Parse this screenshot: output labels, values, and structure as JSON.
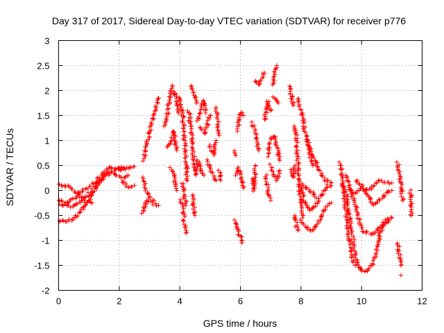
{
  "chart_data": {
    "type": "scatter",
    "title": "Day 317 of 2017, Sidereal Day-to-day VTEC variation (SDTVAR) for receiver p776",
    "xlabel": "GPS time / hours",
    "ylabel": "SDTVAR / TECUs",
    "xlim": [
      0,
      12
    ],
    "ylim": [
      -2,
      3
    ],
    "xticks": [
      0,
      2,
      4,
      6,
      8,
      10,
      12
    ],
    "yticks": [
      -2,
      -1.5,
      -1,
      -0.5,
      0,
      0.5,
      1,
      1.5,
      2,
      2.5,
      3
    ],
    "xtick_labels": [
      "0",
      "2",
      "4",
      "6",
      "8",
      "10",
      "12"
    ],
    "ytick_labels": [
      "-2",
      "-1.5",
      "-1",
      "-0.5",
      "0",
      "0.5",
      "1",
      "1.5",
      "2",
      "2.5",
      "3"
    ],
    "grid": true,
    "marker": "+",
    "marker_color": "#ff0000",
    "series": [
      {
        "name": "SDTVAR",
        "segments": [
          [
            [
              0.0,
              0.12
            ],
            [
              0.3,
              0.08
            ],
            [
              0.6,
              -0.05
            ],
            [
              0.9,
              -0.22
            ],
            [
              1.1,
              -0.25
            ]
          ],
          [
            [
              0.0,
              -0.2
            ],
            [
              0.3,
              -0.25
            ],
            [
              0.6,
              -0.1
            ],
            [
              0.8,
              0.0
            ],
            [
              1.2,
              0.15
            ],
            [
              1.5,
              0.35
            ],
            [
              1.7,
              0.45
            ],
            [
              1.9,
              0.45
            ],
            [
              2.2,
              0.45
            ],
            [
              2.5,
              0.48
            ]
          ],
          [
            [
              0.0,
              -0.6
            ],
            [
              0.4,
              -0.6
            ],
            [
              0.7,
              -0.45
            ],
            [
              1.0,
              -0.2
            ],
            [
              1.3,
              0.1
            ],
            [
              1.5,
              0.3
            ],
            [
              1.8,
              0.35
            ],
            [
              2.1,
              0.25
            ],
            [
              2.3,
              0.3
            ]
          ],
          [
            [
              0.0,
              -0.25
            ],
            [
              0.2,
              -0.3
            ],
            [
              0.5,
              -0.32
            ],
            [
              0.8,
              -0.2
            ],
            [
              1.1,
              0.0
            ],
            [
              1.4,
              0.2
            ],
            [
              1.7,
              0.38
            ],
            [
              2.0,
              0.42
            ],
            [
              2.2,
              0.42
            ]
          ],
          [
            [
              2.1,
              0.2
            ],
            [
              2.3,
              0.05
            ],
            [
              2.5,
              0.1
            ]
          ],
          [
            [
              2.75,
              -0.45
            ],
            [
              2.9,
              -0.2
            ],
            [
              3.1,
              -0.25
            ],
            [
              3.3,
              -0.3
            ]
          ],
          [
            [
              2.8,
              0.6
            ],
            [
              2.9,
              0.85
            ],
            [
              3.0,
              1.2
            ],
            [
              3.15,
              1.55
            ],
            [
              3.3,
              1.85
            ]
          ],
          [
            [
              2.8,
              0.25
            ],
            [
              2.9,
              0.0
            ],
            [
              3.0,
              -0.15
            ],
            [
              3.15,
              -0.2
            ]
          ],
          [
            [
              3.5,
              1.3
            ],
            [
              3.6,
              1.6
            ],
            [
              3.7,
              1.95
            ],
            [
              3.75,
              2.1
            ]
          ],
          [
            [
              3.6,
              0.85
            ],
            [
              3.7,
              0.95
            ],
            [
              3.8,
              1.2
            ],
            [
              3.85,
              1.0
            ],
            [
              3.9,
              0.8
            ]
          ],
          [
            [
              3.7,
              0.45
            ],
            [
              3.8,
              0.3
            ],
            [
              3.85,
              0.1
            ],
            [
              3.9,
              0.0
            ]
          ],
          [
            [
              3.8,
              2.0
            ],
            [
              3.9,
              1.8
            ],
            [
              3.95,
              1.55
            ]
          ],
          [
            [
              4.0,
              1.85
            ],
            [
              4.1,
              1.5
            ],
            [
              4.15,
              1.1
            ],
            [
              4.2,
              0.6
            ],
            [
              4.25,
              0.2
            ]
          ],
          [
            [
              4.05,
              -0.2
            ],
            [
              4.1,
              -0.4
            ],
            [
              4.15,
              -0.6
            ],
            [
              4.2,
              -0.85
            ]
          ],
          [
            [
              4.1,
              0.15
            ],
            [
              4.15,
              -0.1
            ],
            [
              4.2,
              -0.3
            ]
          ],
          [
            [
              4.3,
              1.6
            ],
            [
              4.35,
              1.3
            ],
            [
              4.4,
              1.0
            ],
            [
              4.45,
              0.7
            ],
            [
              4.5,
              0.4
            ]
          ],
          [
            [
              4.4,
              -0.1
            ],
            [
              4.45,
              -0.3
            ],
            [
              4.5,
              -0.5
            ]
          ],
          [
            [
              4.35,
              2.1
            ],
            [
              4.45,
              1.95
            ],
            [
              4.55,
              1.75
            ]
          ],
          [
            [
              4.5,
              0.3
            ],
            [
              4.55,
              0.4
            ],
            [
              4.6,
              0.6
            ],
            [
              4.7,
              0.4
            ],
            [
              4.8,
              0.3
            ]
          ],
          [
            [
              4.6,
              1.4
            ],
            [
              4.7,
              1.6
            ],
            [
              4.8,
              1.8
            ],
            [
              4.85,
              1.55
            ]
          ],
          [
            [
              4.7,
              1.25
            ],
            [
              4.8,
              1.15
            ],
            [
              4.9,
              1.3
            ],
            [
              5.0,
              1.5
            ]
          ],
          [
            [
              4.9,
              0.6
            ],
            [
              5.0,
              0.45
            ],
            [
              5.1,
              0.3
            ],
            [
              5.2,
              0.2
            ]
          ],
          [
            [
              5.0,
              0.9
            ],
            [
              5.1,
              0.7
            ],
            [
              5.2,
              1.0
            ]
          ],
          [
            [
              5.2,
              1.65
            ],
            [
              5.25,
              1.4
            ],
            [
              5.3,
              1.1
            ]
          ],
          [
            [
              5.3,
              0.4
            ],
            [
              5.35,
              0.2
            ]
          ],
          [
            [
              5.8,
              0.78
            ],
            [
              5.85,
              0.7
            ]
          ],
          [
            [
              5.8,
              -0.6
            ],
            [
              5.9,
              -0.75
            ],
            [
              6.0,
              -0.95
            ],
            [
              6.05,
              -1.05
            ]
          ],
          [
            [
              5.85,
              0.3
            ],
            [
              5.95,
              0.45
            ],
            [
              6.05,
              0.25
            ],
            [
              6.1,
              0.05
            ]
          ],
          [
            [
              5.9,
              1.2
            ],
            [
              5.95,
              1.4
            ],
            [
              6.0,
              1.55
            ],
            [
              6.1,
              1.5
            ]
          ],
          [
            [
              6.4,
              1.35
            ],
            [
              6.5,
              1.1
            ],
            [
              6.6,
              0.8
            ]
          ],
          [
            [
              6.4,
              0.25
            ],
            [
              6.45,
              0.0
            ],
            [
              6.5,
              0.5
            ]
          ],
          [
            [
              6.5,
              2.2
            ],
            [
              6.6,
              2.1
            ],
            [
              6.7,
              2.25
            ],
            [
              6.8,
              2.35
            ]
          ],
          [
            [
              6.8,
              1.4
            ],
            [
              6.85,
              1.6
            ],
            [
              6.9,
              1.8
            ],
            [
              7.0,
              1.6
            ]
          ],
          [
            [
              6.85,
              0.3
            ],
            [
              6.9,
              0.0
            ],
            [
              6.95,
              -0.1
            ],
            [
              7.0,
              -0.2
            ]
          ],
          [
            [
              6.9,
              0.7
            ],
            [
              7.0,
              1.0
            ],
            [
              7.1,
              1.1
            ],
            [
              7.2,
              0.9
            ],
            [
              7.3,
              0.6
            ]
          ],
          [
            [
              7.0,
              0.5
            ],
            [
              7.1,
              0.3
            ],
            [
              7.2,
              0.2
            ],
            [
              7.3,
              0.4
            ]
          ],
          [
            [
              7.1,
              1.85
            ],
            [
              7.2,
              1.8
            ],
            [
              7.25,
              1.75
            ]
          ],
          [
            [
              7.1,
              2.1
            ],
            [
              7.15,
              2.45
            ],
            [
              7.2,
              2.5
            ]
          ],
          [
            [
              7.6,
              2.1
            ],
            [
              7.7,
              1.9
            ],
            [
              7.75,
              1.7
            ]
          ],
          [
            [
              7.7,
              0.4
            ],
            [
              7.75,
              0.25
            ],
            [
              7.8,
              0.5
            ]
          ],
          [
            [
              7.8,
              1.3
            ],
            [
              7.85,
              1.0
            ],
            [
              7.9,
              0.5
            ],
            [
              7.95,
              0.0
            ],
            [
              8.0,
              -0.3
            ],
            [
              8.05,
              -0.55
            ]
          ],
          [
            [
              7.8,
              -0.5
            ],
            [
              7.85,
              -0.7
            ],
            [
              7.9,
              -0.8
            ]
          ],
          [
            [
              7.9,
              1.85
            ],
            [
              8.0,
              1.6
            ],
            [
              8.1,
              1.3
            ],
            [
              8.2,
              1.0
            ],
            [
              8.3,
              0.7
            ],
            [
              8.4,
              0.5
            ]
          ],
          [
            [
              8.0,
              -0.6
            ],
            [
              8.2,
              -0.75
            ],
            [
              8.4,
              -0.8
            ],
            [
              8.6,
              -0.6
            ],
            [
              8.8,
              -0.35
            ],
            [
              9.0,
              -0.25
            ]
          ],
          [
            [
              8.0,
              0.15
            ],
            [
              8.1,
              -0.2
            ],
            [
              8.3,
              -0.4
            ],
            [
              8.5,
              -0.3
            ],
            [
              8.7,
              -0.05
            ],
            [
              8.9,
              0.1
            ],
            [
              9.0,
              0.1
            ]
          ],
          [
            [
              8.2,
              1.0
            ],
            [
              8.4,
              0.7
            ],
            [
              8.6,
              0.4
            ],
            [
              8.8,
              0.2
            ],
            [
              9.0,
              0.15
            ]
          ],
          [
            [
              8.1,
              0.1
            ],
            [
              8.3,
              0.0
            ],
            [
              8.5,
              -0.15
            ]
          ],
          [
            [
              9.3,
              0.55
            ],
            [
              9.35,
              0.3
            ],
            [
              9.4,
              0.0
            ],
            [
              9.5,
              -0.5
            ],
            [
              9.6,
              -1.0
            ],
            [
              9.7,
              -1.4
            ],
            [
              9.8,
              -1.5
            ]
          ],
          [
            [
              9.4,
              0.1
            ],
            [
              9.5,
              -0.1
            ],
            [
              9.6,
              -0.5
            ],
            [
              9.7,
              -0.9
            ],
            [
              9.8,
              -1.3
            ],
            [
              9.9,
              -1.55
            ],
            [
              10.0,
              -1.6
            ],
            [
              10.2,
              -1.6
            ],
            [
              10.4,
              -1.45
            ],
            [
              10.5,
              -1.2
            ],
            [
              10.6,
              -0.9
            ],
            [
              10.7,
              -0.7
            ],
            [
              10.8,
              -0.65
            ],
            [
              10.9,
              -0.6
            ]
          ],
          [
            [
              9.5,
              0.3
            ],
            [
              9.6,
              0.1
            ],
            [
              9.8,
              -0.3
            ],
            [
              10.0,
              -0.8
            ],
            [
              10.2,
              -0.85
            ],
            [
              10.4,
              -0.85
            ],
            [
              10.6,
              -0.75
            ],
            [
              10.8,
              -0.6
            ],
            [
              11.0,
              -0.55
            ]
          ],
          [
            [
              9.6,
              0.0
            ],
            [
              9.8,
              -0.05
            ],
            [
              10.0,
              0.05
            ],
            [
              10.2,
              0.0
            ],
            [
              10.4,
              0.1
            ],
            [
              10.6,
              0.2
            ],
            [
              10.8,
              0.15
            ],
            [
              11.0,
              0.15
            ]
          ],
          [
            [
              9.8,
              0.2
            ],
            [
              10.0,
              0.1
            ],
            [
              10.2,
              -0.1
            ],
            [
              10.4,
              -0.3
            ],
            [
              10.6,
              -0.2
            ],
            [
              10.8,
              -0.05
            ],
            [
              11.0,
              0.0
            ]
          ],
          [
            [
              11.2,
              0.55
            ],
            [
              11.25,
              0.3
            ],
            [
              11.3,
              0.1
            ],
            [
              11.35,
              -0.2
            ]
          ],
          [
            [
              11.2,
              -1.05
            ],
            [
              11.25,
              -1.3
            ],
            [
              11.3,
              -1.5
            ]
          ],
          [
            [
              11.3,
              -1.7
            ]
          ],
          [
            [
              11.6,
              0.0
            ],
            [
              11.65,
              -0.5
            ]
          ]
        ]
      }
    ]
  }
}
